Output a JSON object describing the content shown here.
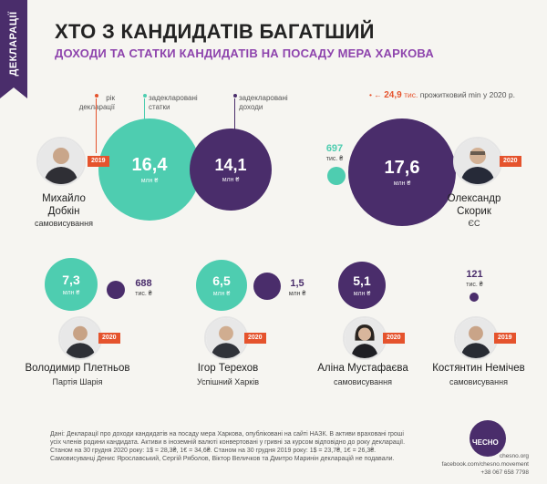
{
  "side_tab": "ДЕКЛАРАЦІЇ",
  "title": "ХТО З КАНДИДАТІВ БАГАТШИЙ",
  "subtitle": "ДОХОДИ ТА СТАТКИ КАНДИДАТІВ НА ПОСАДУ МЕРА ХАРКОВА",
  "legend": {
    "year": "рік\nдекларації",
    "assets": "задекларовані\nстатки",
    "income": "задекларовані\nдоходи",
    "min_value": "24,9",
    "min_unit": "тис.",
    "min_label": "прожитковий min у 2020 р."
  },
  "colors": {
    "assets": "#4ecdb0",
    "income": "#4a2d6b",
    "accent": "#e5532d",
    "title": "#8e44ad"
  },
  "units": {
    "mln": "млн ₴",
    "thousand": "тис. ₴"
  },
  "chart_data": {
    "type": "bubble",
    "title": "ХТО З КАНДИДАТІВ БАГАТШИЙ",
    "subtitle": "ДОХОДИ ТА СТАТКИ КАНДИДАТІВ НА ПОСАДУ МЕРА ХАРКОВА",
    "series": [
      {
        "name": "задекларовані статки",
        "color": "#4ecdb0"
      },
      {
        "name": "задекларовані доходи",
        "color": "#4a2d6b"
      }
    ],
    "candidates": [
      {
        "name": "Михайло\nДобкін",
        "party": "самовисування",
        "year": "2019",
        "assets": {
          "label": "16,4",
          "unit": "млн ₴",
          "value_thousand_uah": 16400
        },
        "income": {
          "label": "14,1",
          "unit": "млн ₴",
          "value_thousand_uah": 14100
        }
      },
      {
        "name": "Олександр\nСкорик",
        "party": "ЄС",
        "year": "2020",
        "assets": {
          "label": "697",
          "unit": "тис. ₴",
          "value_thousand_uah": 697
        },
        "income": {
          "label": "17,6",
          "unit": "млн ₴",
          "value_thousand_uah": 17600
        }
      },
      {
        "name": "Володимир Плетньов",
        "party": "Партія Шарія",
        "year": "2020",
        "assets": {
          "label": "7,3",
          "unit": "млн ₴",
          "value_thousand_uah": 7300
        },
        "income": {
          "label": "688",
          "unit": "тис. ₴",
          "value_thousand_uah": 688
        }
      },
      {
        "name": "Ігор Терехов",
        "party": "Успішний Харків",
        "year": "2020",
        "assets": {
          "label": "6,5",
          "unit": "млн ₴",
          "value_thousand_uah": 6500
        },
        "income": {
          "label": "1,5",
          "unit": "млн ₴",
          "value_thousand_uah": 1500
        }
      },
      {
        "name": "Аліна Мустафаєва",
        "party": "самовисування",
        "year": "2020",
        "assets": null,
        "income": {
          "label": "5,1",
          "unit": "млн ₴",
          "value_thousand_uah": 5100
        }
      },
      {
        "name": "Костянтин Немічев",
        "party": "самовисування",
        "year": "2019",
        "assets": null,
        "income": {
          "label": "121",
          "unit": "тис. ₴",
          "value_thousand_uah": 121
        }
      }
    ],
    "reference": {
      "label": "прожитковий min у 2020 р.",
      "value_thousand_uah": 24.9
    }
  },
  "footer": {
    "source": "Дані: Декларації про доходи кандидатів на посаду мера Харкова, опубліковані на сайті НАЗК. В активи враховані гроші усіх членів родини кандидата. Активи в іноземній валюті конвертовані у гривні за курсом відповідно до року декларації. Станом на 30 грудня 2020 року: 1$ = 28,3₴, 1€ = 34,6₴. Станом на 30 грудня 2019 року: 1$ = 23,7₴, 1€ = 26,3₴. Самовисуванці Денис Ярославський, Сергій Ряболов, Віктор Величков та Дмитро Маринін декларацій не подавали.",
    "logo": "ЧЕСНО",
    "site": "chesno.org",
    "facebook": "facebook.com/chesno.movement",
    "phone": "+38 067 658 7798"
  }
}
